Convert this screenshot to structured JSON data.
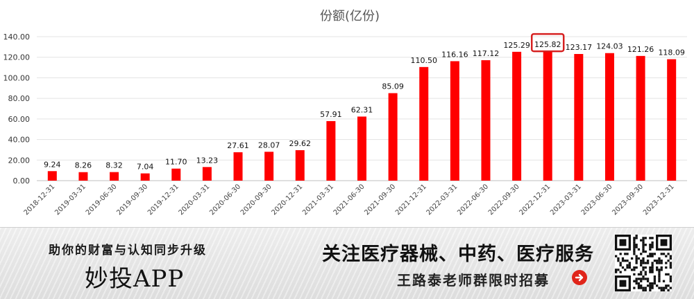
{
  "chart_data": {
    "type": "bar",
    "title": "份额(亿份)",
    "xlabel": "",
    "ylabel": "",
    "ylim": [
      0,
      140
    ],
    "yticks": [
      "0.00",
      "20.00",
      "40.00",
      "60.00",
      "80.00",
      "100.00",
      "120.00",
      "140.00"
    ],
    "grid": true,
    "legend": "none",
    "bar_color": "#ff0000",
    "highlight_color": "#d62020",
    "highlight_index": 16,
    "categories": [
      "2018-12-31",
      "2019-03-31",
      "2019-06-30",
      "2019-09-30",
      "2019-12-31",
      "2020-03-31",
      "2020-06-30",
      "2020-09-30",
      "2020-12-31",
      "2021-03-31",
      "2021-06-30",
      "2021-09-30",
      "2021-12-31",
      "2022-03-31",
      "2022-06-30",
      "2022-09-30",
      "2022-12-31",
      "2023-03-31",
      "2023-06-30",
      "2023-09-30",
      "2023-12-31"
    ],
    "values": [
      9.24,
      8.26,
      8.32,
      7.04,
      11.7,
      13.23,
      27.61,
      28.07,
      29.62,
      57.91,
      62.31,
      85.09,
      110.5,
      116.16,
      117.12,
      125.29,
      125.82,
      123.17,
      124.03,
      121.26,
      118.09
    ],
    "value_labels": [
      "9.24",
      "8.26",
      "8.32",
      "7.04",
      "11.70",
      "13.23",
      "27.61",
      "28.07",
      "29.62",
      "57.91",
      "62.31",
      "85.09",
      "110.50",
      "116.16",
      "117.12",
      "125.29",
      "125.82",
      "123.17",
      "124.03",
      "121.26",
      "118.09"
    ]
  },
  "banner": {
    "slogan": "助你的财富与认知同步升级",
    "app_name": "妙投APP",
    "focus": "关注医疗器械、中药、医疗服务",
    "recruit": "王路泰老师群限时招募",
    "arrow_icon": "arrow-right-circle-icon",
    "qr_icon": "qr-code-icon",
    "accent_color": "#e0251a"
  }
}
